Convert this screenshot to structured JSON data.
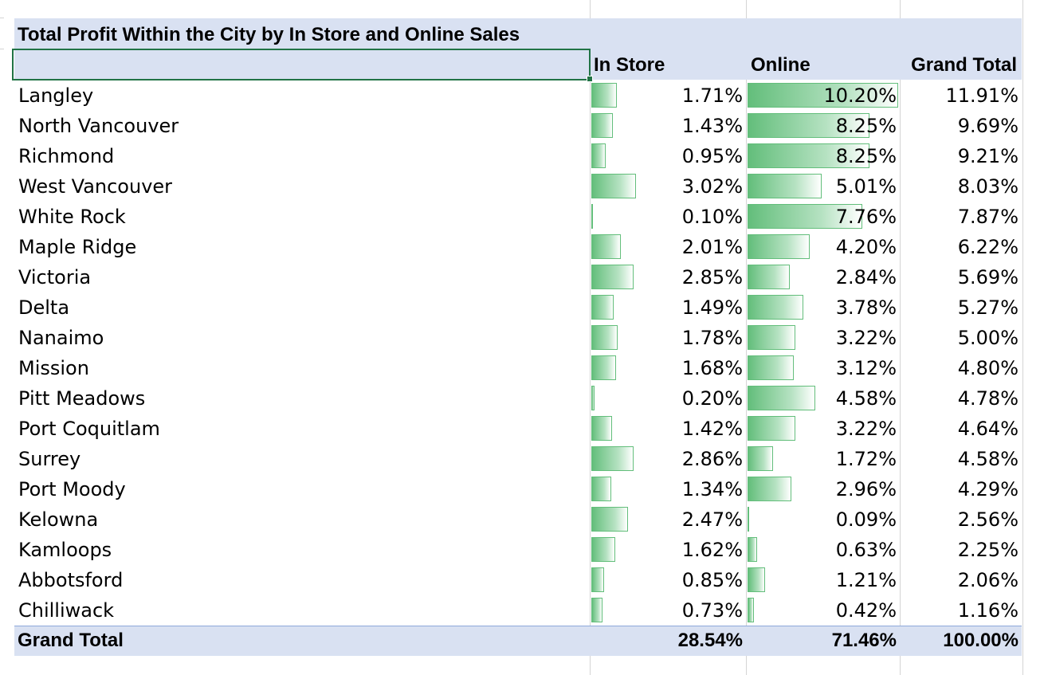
{
  "pivot": {
    "title": "Total Profit Within the City by In Store and Online Sales",
    "headers": {
      "row_label": "",
      "in_store": "In Store",
      "online": "Online",
      "grand_total": "Grand Total"
    },
    "rows": [
      {
        "city": "Langley",
        "in_store": "1.71%",
        "online": "10.20%",
        "total": "11.91%"
      },
      {
        "city": "North Vancouver",
        "in_store": "1.43%",
        "online": "8.25%",
        "total": "9.69%"
      },
      {
        "city": "Richmond",
        "in_store": "0.95%",
        "online": "8.25%",
        "total": "9.21%"
      },
      {
        "city": "West Vancouver",
        "in_store": "3.02%",
        "online": "5.01%",
        "total": "8.03%"
      },
      {
        "city": "White Rock",
        "in_store": "0.10%",
        "online": "7.76%",
        "total": "7.87%"
      },
      {
        "city": "Maple Ridge",
        "in_store": "2.01%",
        "online": "4.20%",
        "total": "6.22%"
      },
      {
        "city": "Victoria",
        "in_store": "2.85%",
        "online": "2.84%",
        "total": "5.69%"
      },
      {
        "city": "Delta",
        "in_store": "1.49%",
        "online": "3.78%",
        "total": "5.27%"
      },
      {
        "city": "Nanaimo",
        "in_store": "1.78%",
        "online": "3.22%",
        "total": "5.00%"
      },
      {
        "city": "Mission",
        "in_store": "1.68%",
        "online": "3.12%",
        "total": "4.80%"
      },
      {
        "city": "Pitt Meadows",
        "in_store": "0.20%",
        "online": "4.58%",
        "total": "4.78%"
      },
      {
        "city": "Port Coquitlam",
        "in_store": "1.42%",
        "online": "3.22%",
        "total": "4.64%"
      },
      {
        "city": "Surrey",
        "in_store": "2.86%",
        "online": "1.72%",
        "total": "4.58%"
      },
      {
        "city": "Port Moody",
        "in_store": "1.34%",
        "online": "2.96%",
        "total": "4.29%"
      },
      {
        "city": "Kelowna",
        "in_store": "2.47%",
        "online": "0.09%",
        "total": "2.56%"
      },
      {
        "city": "Kamloops",
        "in_store": "1.62%",
        "online": "0.63%",
        "total": "2.25%"
      },
      {
        "city": "Abbotsford",
        "in_store": "0.85%",
        "online": "1.21%",
        "total": "2.06%"
      },
      {
        "city": "Chilliwack",
        "in_store": "0.73%",
        "online": "0.42%",
        "total": "1.16%"
      }
    ],
    "grand_total": {
      "label": "Grand Total",
      "in_store": "28.54%",
      "online": "71.46%",
      "total": "100.00%"
    }
  },
  "data_bars": {
    "color": "#63be7b",
    "in_store_max_value": 3.02,
    "online_max_value": 10.2
  },
  "colors": {
    "header_band": "#d9e1f2",
    "selection_border": "#217346",
    "gridline": "#d4d4d4"
  }
}
